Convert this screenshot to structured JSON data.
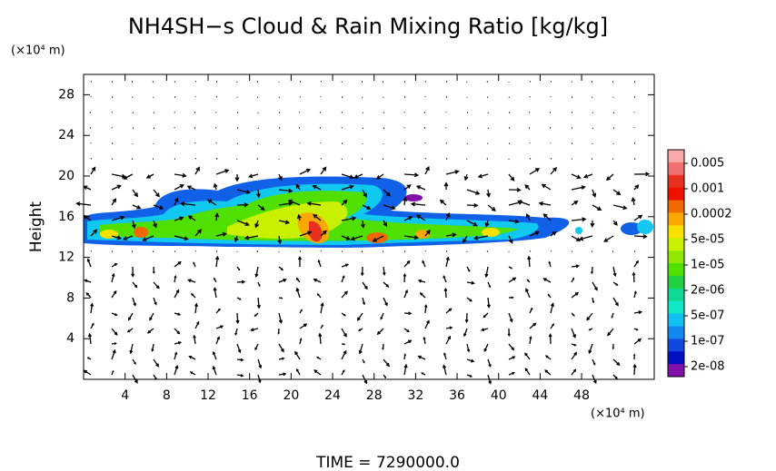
{
  "chart_data": {
    "type": "contour",
    "title": "NH4SH−s Cloud & Rain Mixing Ratio [kg/kg]",
    "ylabel": "Height",
    "y_unit_label": "(×10⁴ m)",
    "x_unit_label": "(×10⁴ m)",
    "footer": "TIME  =  7290000.0",
    "xlim": [
      0,
      55
    ],
    "xticks": [
      4,
      8,
      12,
      16,
      20,
      24,
      28,
      32,
      36,
      40,
      44,
      48
    ],
    "ylim": [
      0,
      30
    ],
    "yticks": [
      4,
      8,
      12,
      16,
      20,
      24,
      28
    ],
    "colorbar": {
      "colors": [
        "#f8a8a8",
        "#f07070",
        "#e83020",
        "#f01000",
        "#f06800",
        "#f8a800",
        "#f8e000",
        "#c8f000",
        "#90e800",
        "#50e000",
        "#20d040",
        "#10d890",
        "#10e8c8",
        "#10c0f0",
        "#1088f0",
        "#1048e0",
        "#0010c0",
        "#8010a8"
      ],
      "ticks": [
        0.005,
        0.001,
        0.0002,
        {
          "value": 5e-05,
          "label": "5e-05"
        },
        {
          "value": 1e-05,
          "label": "1e-05"
        },
        {
          "value": 2e-06,
          "label": "2e-06"
        },
        {
          "value": 5e-07,
          "label": "5e-07"
        },
        {
          "value": 1e-07,
          "label": "1e-07"
        },
        {
          "value": 2e-08,
          "label": "2e-08"
        }
      ]
    }
  }
}
